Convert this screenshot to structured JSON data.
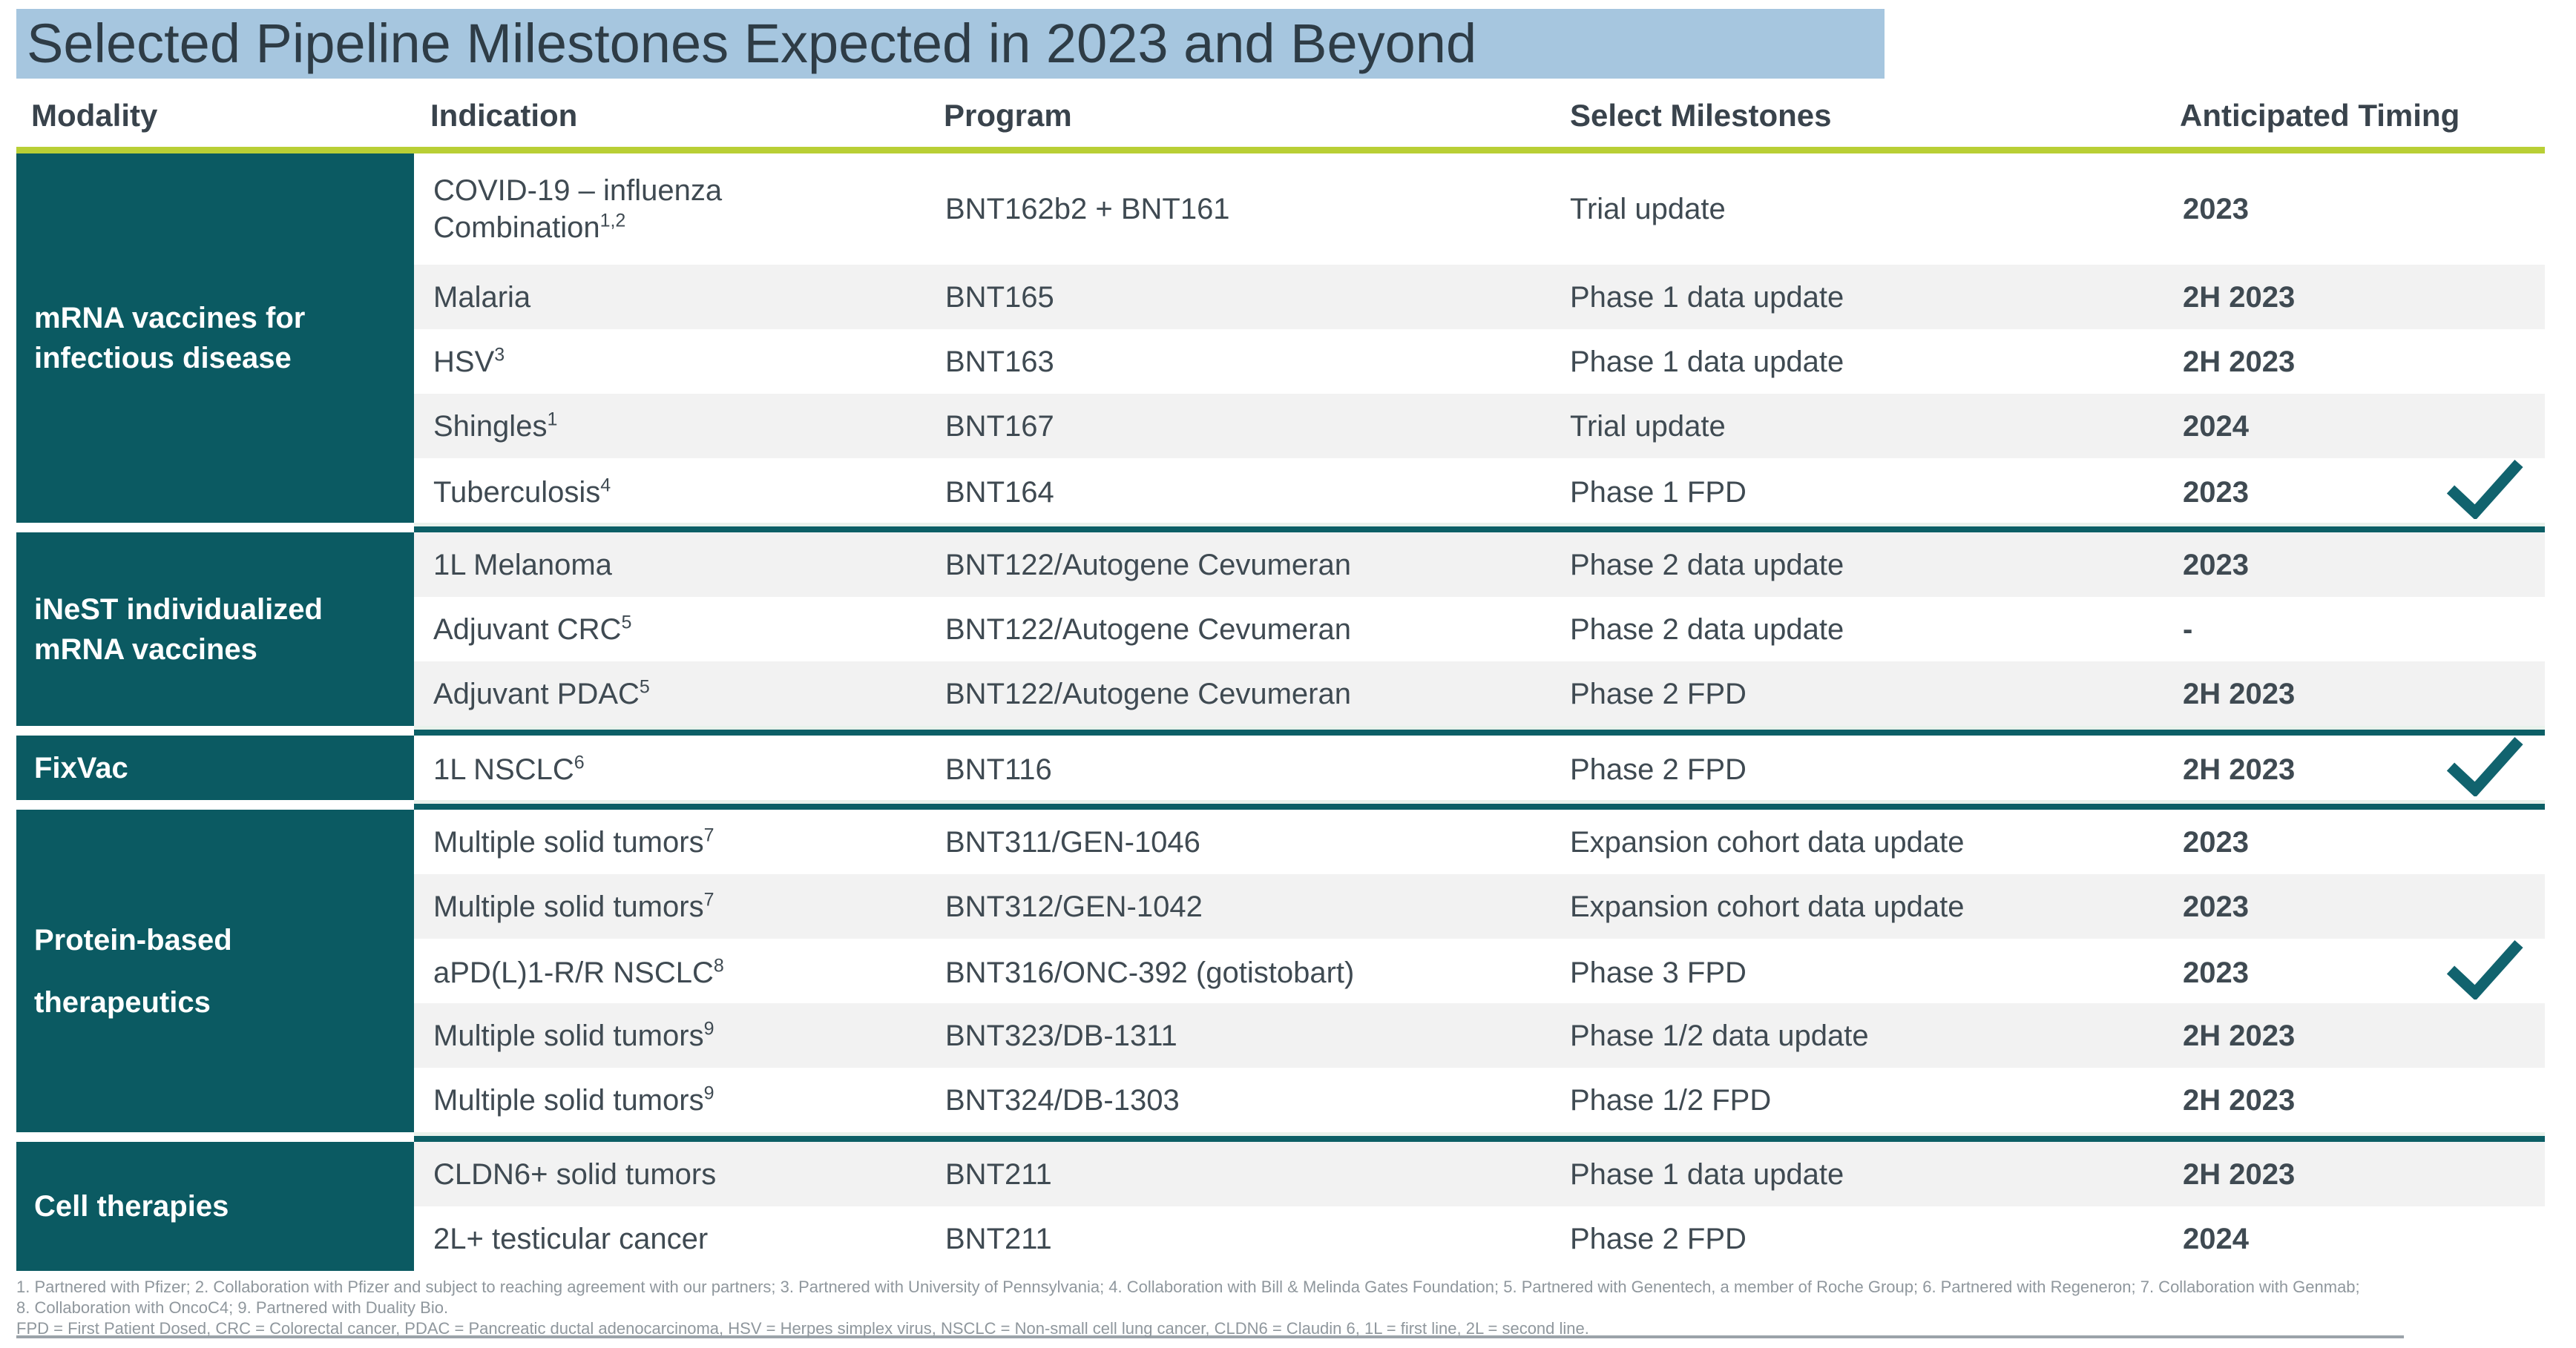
{
  "title": "Selected Pipeline Milestones Expected in 2023 and Beyond",
  "columns": [
    "Modality",
    "Indication",
    "Program",
    "Select Milestones",
    "Anticipated Timing"
  ],
  "colors": {
    "modality_teal": "#0B5A62",
    "divider_teal": "#0C5F66",
    "checkmark_teal": "#11636E",
    "header_underline_lime": "#B9CF35",
    "title_highlight_blue": "#A6C6DF",
    "row_stripe_gray": "#F2F2F2",
    "body_text": "#3F4A52",
    "footnote_gray": "#8F979D"
  },
  "sections": [
    {
      "modality": "mRNA vaccines for\ninfectious disease",
      "spread_label": false,
      "rows": [
        {
          "indication": "COVID-19 – influenza\nCombination",
          "indication_sup": "1,2",
          "program": "BNT162b2 + BNT161",
          "milestone": "Trial update",
          "timing": "2023",
          "achieved": false,
          "shaded": false,
          "tall": true
        },
        {
          "indication": "Malaria",
          "indication_sup": "",
          "program": "BNT165",
          "milestone": "Phase 1 data update",
          "timing": "2H 2023",
          "achieved": false,
          "shaded": true,
          "tall": false
        },
        {
          "indication": "HSV",
          "indication_sup": "3",
          "program": "BNT163",
          "milestone": "Phase 1 data update",
          "timing": "2H 2023",
          "achieved": false,
          "shaded": false,
          "tall": false
        },
        {
          "indication": "Shingles",
          "indication_sup": "1",
          "program": "BNT167",
          "milestone": "Trial update",
          "timing": "2024",
          "achieved": false,
          "shaded": true,
          "tall": false
        },
        {
          "indication": "Tuberculosis",
          "indication_sup": "4",
          "program": "BNT164",
          "milestone": "Phase 1 FPD",
          "timing": "2023",
          "achieved": true,
          "shaded": false,
          "tall": false
        }
      ]
    },
    {
      "modality": "iNeST individualized\nmRNA vaccines",
      "spread_label": false,
      "rows": [
        {
          "indication": "1L Melanoma",
          "indication_sup": "",
          "program": "BNT122/Autogene Cevumeran",
          "milestone": "Phase 2 data update",
          "timing": "2023",
          "achieved": false,
          "shaded": true,
          "tall": false
        },
        {
          "indication": "Adjuvant CRC",
          "indication_sup": "5",
          "program": "BNT122/Autogene Cevumeran",
          "milestone": "Phase 2 data update",
          "timing": "-",
          "achieved": false,
          "shaded": false,
          "tall": false
        },
        {
          "indication": "Adjuvant PDAC",
          "indication_sup": "5",
          "program": "BNT122/Autogene Cevumeran",
          "milestone": "Phase 2 FPD",
          "timing": "2H 2023",
          "achieved": false,
          "shaded": true,
          "tall": false
        }
      ]
    },
    {
      "modality": "FixVac",
      "spread_label": false,
      "rows": [
        {
          "indication": "1L NSCLC",
          "indication_sup": "6",
          "program": "BNT116",
          "milestone": "Phase 2 FPD",
          "timing": "2H 2023",
          "achieved": true,
          "shaded": false,
          "tall": false
        }
      ]
    },
    {
      "modality": "Protein-based\ntherapeutics",
      "spread_label": true,
      "rows": [
        {
          "indication": "Multiple solid tumors",
          "indication_sup": "7",
          "program": "BNT311/GEN-1046",
          "milestone": "Expansion cohort data update",
          "timing": "2023",
          "achieved": false,
          "shaded": false,
          "tall": false
        },
        {
          "indication": "Multiple solid tumors",
          "indication_sup": "7",
          "program": "BNT312/GEN-1042",
          "milestone": "Expansion cohort data update",
          "timing": "2023",
          "achieved": false,
          "shaded": true,
          "tall": false
        },
        {
          "indication": "aPD(L)1-R/R NSCLC",
          "indication_sup": "8",
          "program": "BNT316/ONC-392 (gotistobart)",
          "milestone": "Phase 3 FPD",
          "timing": "2023",
          "achieved": true,
          "shaded": false,
          "tall": false
        },
        {
          "indication": "Multiple solid tumors",
          "indication_sup": "9",
          "program": "BNT323/DB-1311",
          "milestone": "Phase 1/2 data update",
          "timing": "2H 2023",
          "achieved": false,
          "shaded": true,
          "tall": false
        },
        {
          "indication": "Multiple solid tumors",
          "indication_sup": "9",
          "program": "BNT324/DB-1303",
          "milestone": "Phase 1/2 FPD",
          "timing": "2H 2023",
          "achieved": false,
          "shaded": false,
          "tall": false
        }
      ]
    },
    {
      "modality": "Cell therapies",
      "spread_label": false,
      "rows": [
        {
          "indication": "CLDN6+ solid tumors",
          "indication_sup": "",
          "program": "BNT211",
          "milestone": "Phase 1 data update",
          "timing": "2H 2023",
          "achieved": false,
          "shaded": true,
          "tall": false
        },
        {
          "indication": "2L+ testicular cancer",
          "indication_sup": "",
          "program": "BNT211",
          "milestone": "Phase 2 FPD",
          "timing": "2024",
          "achieved": false,
          "shaded": false,
          "tall": false
        }
      ]
    }
  ],
  "footnotes": {
    "line1": "1. Partnered with Pfizer; 2. Collaboration with Pfizer and subject to reaching agreement with our partners; 3. Partnered with University of Pennsylvania; 4. Collaboration with Bill & Melinda Gates Foundation; 5. Partnered with Genentech, a member of Roche Group; 6. Partnered with Regeneron; 7. Collaboration with Genmab;",
    "line2": "8. Collaboration with OncoC4; 9. Partnered with Duality Bio.",
    "line3": "FPD = First Patient Dosed, CRC = Colorectal cancer, PDAC = Pancreatic ductal adenocarcinoma, HSV = Herpes simplex virus, NSCLC = Non-small cell lung cancer, CLDN6 = Claudin 6, 1L = first line, 2L = second line."
  }
}
